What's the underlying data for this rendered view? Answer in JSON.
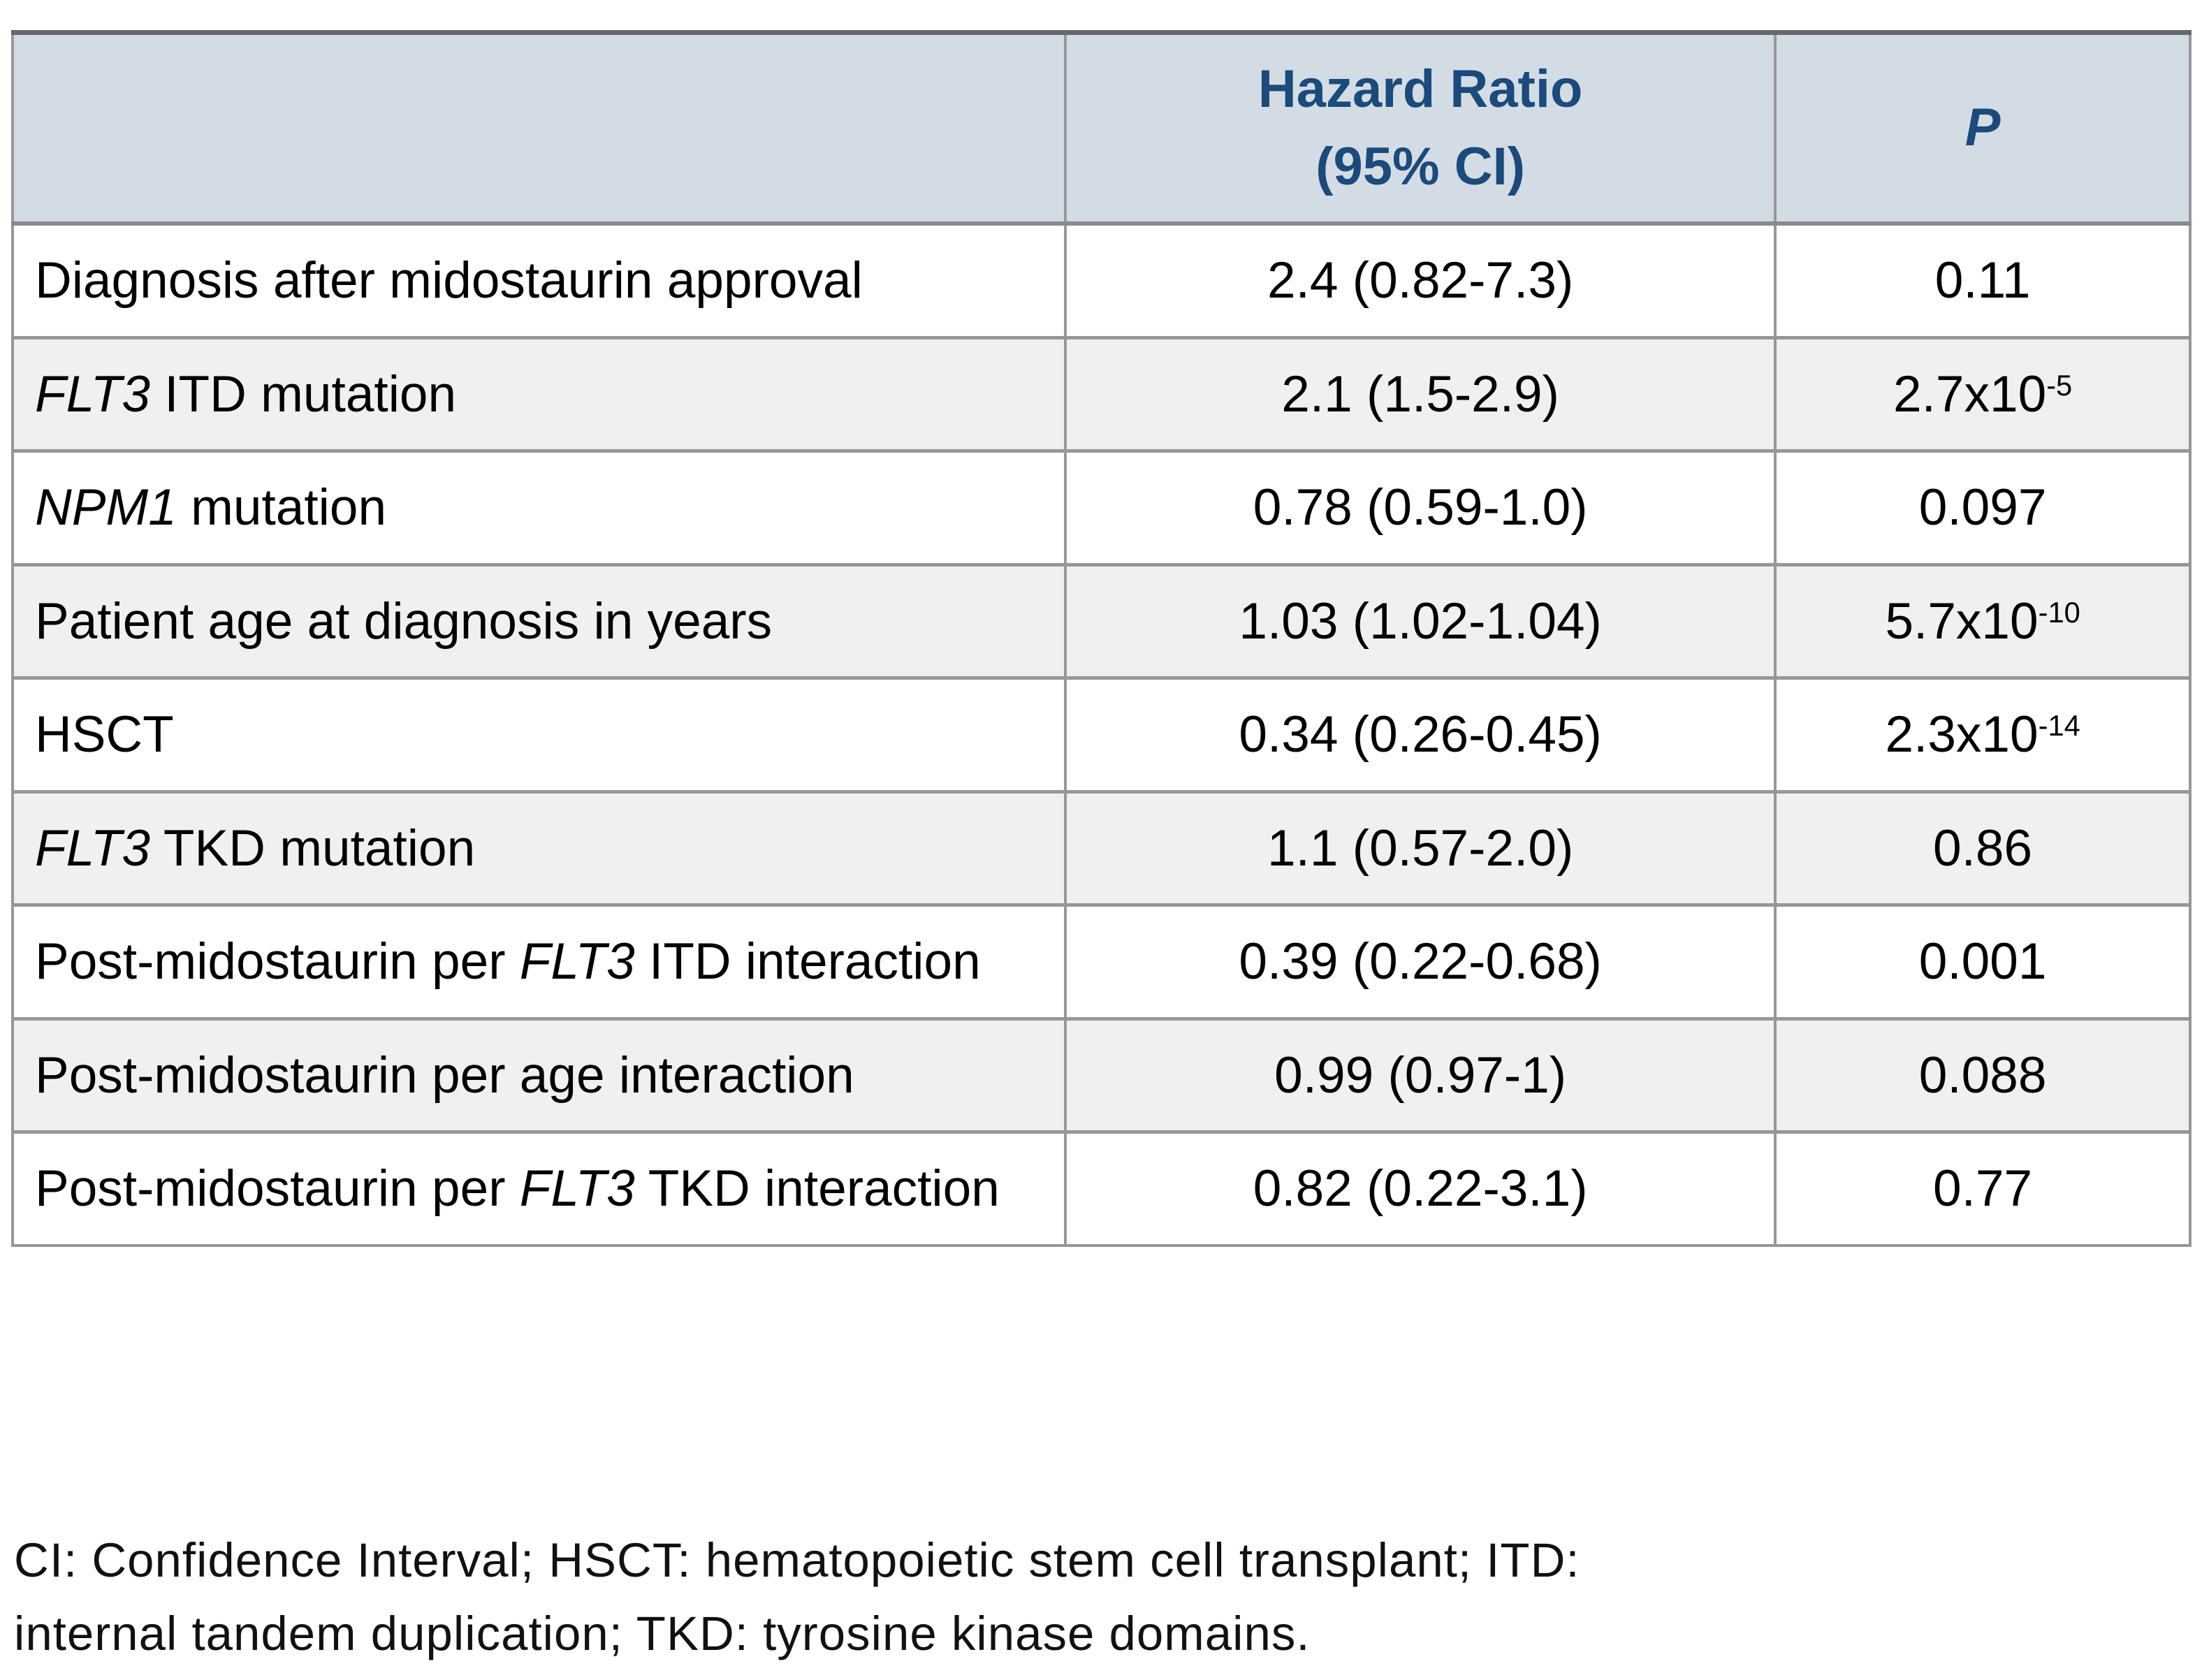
{
  "colors": {
    "header_bg": "#d3dce5",
    "header_text": "#1b4a7b",
    "row_shade": "#f0f0ee",
    "border": "#979797",
    "text": "#000000"
  },
  "table": {
    "header": {
      "hazard_line1": "Hazard Ratio",
      "hazard_line2": "(95% CI)",
      "p": "P"
    },
    "rows": [
      {
        "shade": false,
        "label": [
          {
            "t": "Diagnosis after midostaurin approval",
            "i": false
          }
        ],
        "hr": "2.4 (0.82-7.3)",
        "p": {
          "t": "0.11"
        }
      },
      {
        "shade": true,
        "label": [
          {
            "t": "FLT3",
            "i": true
          },
          {
            "t": " ITD mutation",
            "i": false
          }
        ],
        "hr": "2.1 (1.5-2.9)",
        "p": {
          "t": "2.7x10",
          "sup": "-5"
        }
      },
      {
        "shade": false,
        "label": [
          {
            "t": "NPM1",
            "i": true
          },
          {
            "t": " mutation",
            "i": false
          }
        ],
        "hr": "0.78 (0.59-1.0)",
        "p": {
          "t": "0.097"
        }
      },
      {
        "shade": true,
        "label": [
          {
            "t": "Patient age at diagnosis in years",
            "i": false
          }
        ],
        "hr": "1.03 (1.02-1.04)",
        "p": {
          "t": "5.7x10",
          "sup": "-10"
        }
      },
      {
        "shade": false,
        "label": [
          {
            "t": "HSCT",
            "i": false
          }
        ],
        "hr": "0.34 (0.26-0.45)",
        "p": {
          "t": "2.3x10",
          "sup": "-14"
        }
      },
      {
        "shade": true,
        "label": [
          {
            "t": "FLT3",
            "i": true
          },
          {
            "t": " TKD mutation",
            "i": false
          }
        ],
        "hr": "1.1 (0.57-2.0)",
        "p": {
          "t": "0.86"
        }
      },
      {
        "shade": false,
        "label": [
          {
            "t": "Post-midostaurin per ",
            "i": false
          },
          {
            "t": "FLT3",
            "i": true
          },
          {
            "t": " ITD interaction",
            "i": false
          }
        ],
        "hr": "0.39 (0.22-0.68)",
        "p": {
          "t": "0.001"
        }
      },
      {
        "shade": true,
        "label": [
          {
            "t": "Post-midostaurin per age interaction",
            "i": false
          }
        ],
        "hr": "0.99 (0.97-1)",
        "p": {
          "t": "0.088"
        }
      },
      {
        "shade": false,
        "label": [
          {
            "t": "Post-midostaurin per ",
            "i": false
          },
          {
            "t": "FLT3",
            "i": true
          },
          {
            "t": " TKD interaction",
            "i": false
          }
        ],
        "hr": "0.82 (0.22-3.1)",
        "p": {
          "t": "0.77"
        }
      }
    ]
  },
  "footnote": {
    "line1": "CI: Confidence Interval; HSCT: hematopoietic stem cell transplant; ITD:",
    "line2": "internal tandem duplication; TKD: tyrosine kinase domains."
  }
}
